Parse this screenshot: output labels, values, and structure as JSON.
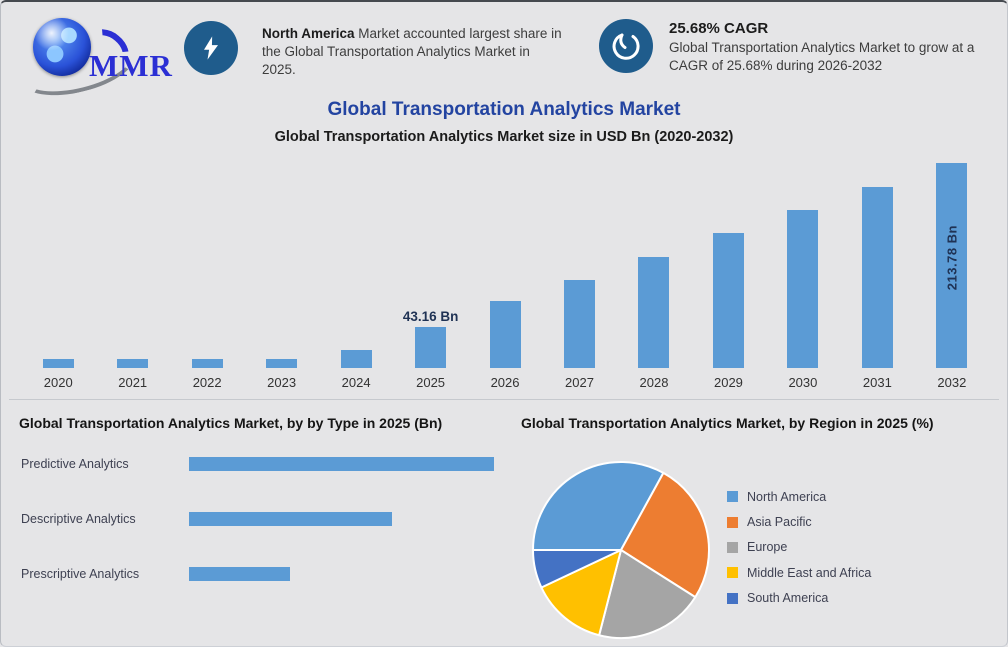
{
  "page": {
    "background": "#e5e5e7",
    "accent_blue": "#2344A1",
    "icon_circle_color": "#1F5C8C"
  },
  "header": {
    "logo_text": "MMR",
    "callout1": {
      "icon": "lightning-bolt",
      "bold_text": "North America",
      "text_rest": " Market accounted largest share in the Global Transportation Analytics Market in 2025."
    },
    "callout2": {
      "icon": "growth-swirl",
      "heading": "25.68% CAGR",
      "body": "Global Transportation Analytics Market to grow at a CAGR of 25.68% during 2026-2032"
    }
  },
  "titles": {
    "main": "Global Transportation Analytics Market"
  },
  "chart_data": [
    {
      "type": "bar",
      "title": "Global Transportation Analytics Market size in USD Bn (2020-2032)",
      "unit": "USD Bn",
      "categories": [
        "2020",
        "2021",
        "2022",
        "2023",
        "2024",
        "2025",
        "2026",
        "2027",
        "2028",
        "2029",
        "2030",
        "2031",
        "2032"
      ],
      "values": [
        9,
        9,
        9,
        9,
        19,
        43.16,
        70,
        92,
        116,
        141,
        165,
        189,
        213.78
      ],
      "ylim": [
        0,
        220
      ],
      "grid": false,
      "bar_color": "#5B9BD5",
      "point_labels": [
        {
          "category": "2025",
          "text": "43.16 Bn",
          "position": "above"
        },
        {
          "category": "2032",
          "text": "213.78 Bn",
          "position": "inside-vertical"
        }
      ]
    },
    {
      "type": "bar-horizontal",
      "title": "Global Transportation Analytics Market, by by Type in 2025 (Bn)",
      "categories": [
        "Predictive Analytics",
        "Descriptive Analytics",
        "Prescriptive Analytics"
      ],
      "values": [
        100,
        66.5,
        33.1
      ],
      "value_note": "relative bar lengths; no axis values shown in chart",
      "grid": false,
      "bar_color": "#5B9BD5"
    },
    {
      "type": "pie",
      "title": "Global Transportation Analytics Market, by Region in 2025 (%)",
      "labels": [
        "North America",
        "Asia Pacific",
        "Europe",
        "Middle East and Africa",
        "South America"
      ],
      "values": [
        33,
        26,
        20,
        14,
        7
      ],
      "colors": [
        "#5B9BD5",
        "#ED7D31",
        "#A5A5A5",
        "#FFC000",
        "#4472C4"
      ],
      "start_angle_deg": 270,
      "legend_position": "right"
    }
  ]
}
